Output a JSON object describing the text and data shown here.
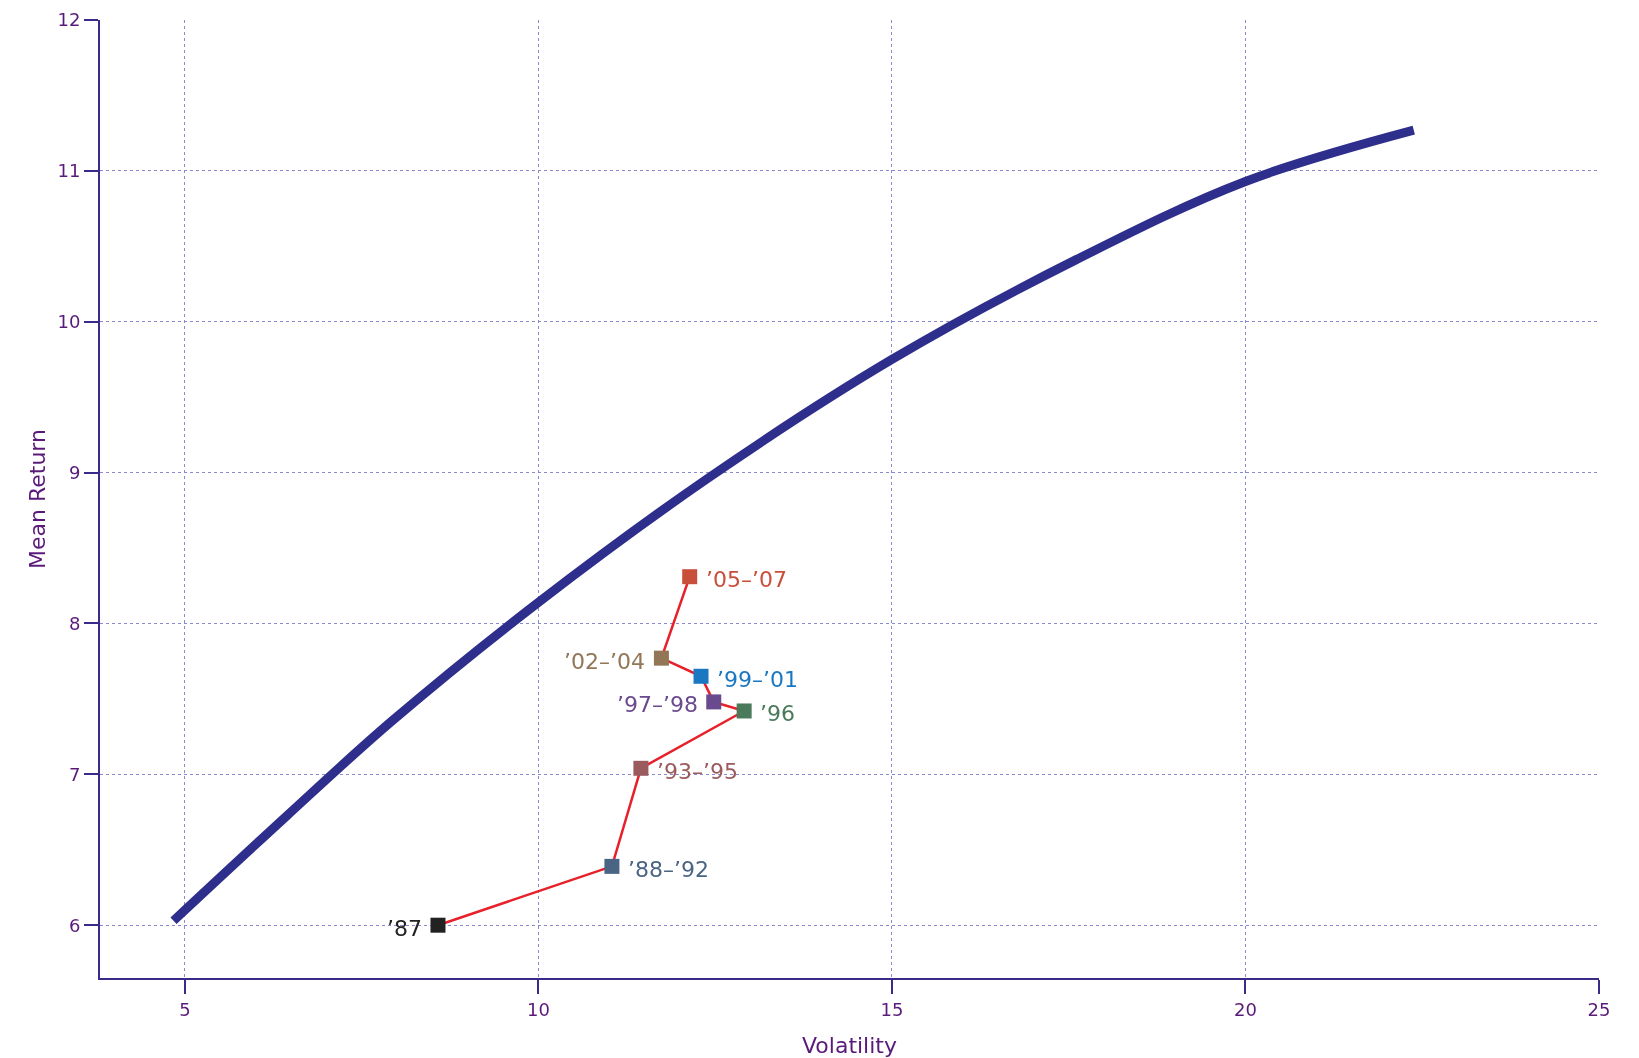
{
  "chart_data": {
    "type": "line",
    "xlabel": "Volatility",
    "ylabel": "Mean Return",
    "xlim": [
      3.8,
      25
    ],
    "ylim": [
      5.65,
      12
    ],
    "xticks": [
      5,
      10,
      15,
      20,
      25
    ],
    "yticks": [
      6,
      7,
      8,
      9,
      10,
      11,
      12
    ],
    "grid": true,
    "series": [
      {
        "marker": "none",
        "color": "#2e2e8c",
        "x": [
          4.84,
          6.43,
          7.92,
          10,
          12.39,
          15,
          17.6,
          20,
          22.38
        ],
        "values": [
          6.03,
          6.72,
          7.35,
          8.14,
          8.96,
          9.75,
          10.41,
          10.93,
          11.27
        ]
      },
      {
        "marker": "square",
        "color": "#e8202a",
        "colors": [
          "#222222",
          "#4a6584",
          "#9a5a5e",
          "#4a7a5a",
          "#6a4a8e",
          "#1a78c2",
          "#927656",
          "#c8503a"
        ],
        "x": [
          8.58,
          11.04,
          11.45,
          12.91,
          12.48,
          12.3,
          11.74,
          12.14
        ],
        "values": [
          6.0,
          6.39,
          7.04,
          7.42,
          7.48,
          7.65,
          7.77,
          8.31
        ]
      }
    ],
    "annotations": [
      {
        "text": "’87",
        "x": 8.58,
        "y": 6.0
      },
      {
        "text": "’88–’92",
        "x": 11.04,
        "y": 6.39
      },
      {
        "text": "’93–’95",
        "x": 11.45,
        "y": 7.04
      },
      {
        "text": "’96",
        "x": 12.91,
        "y": 7.42
      },
      {
        "text": "’97–’98",
        "x": 12.48,
        "y": 7.48
      },
      {
        "text": "’99–’01",
        "x": 12.3,
        "y": 7.65
      },
      {
        "text": "’02–’04",
        "x": 11.74,
        "y": 7.77
      },
      {
        "text": "’05–’07",
        "x": 12.14,
        "y": 8.31
      }
    ]
  }
}
